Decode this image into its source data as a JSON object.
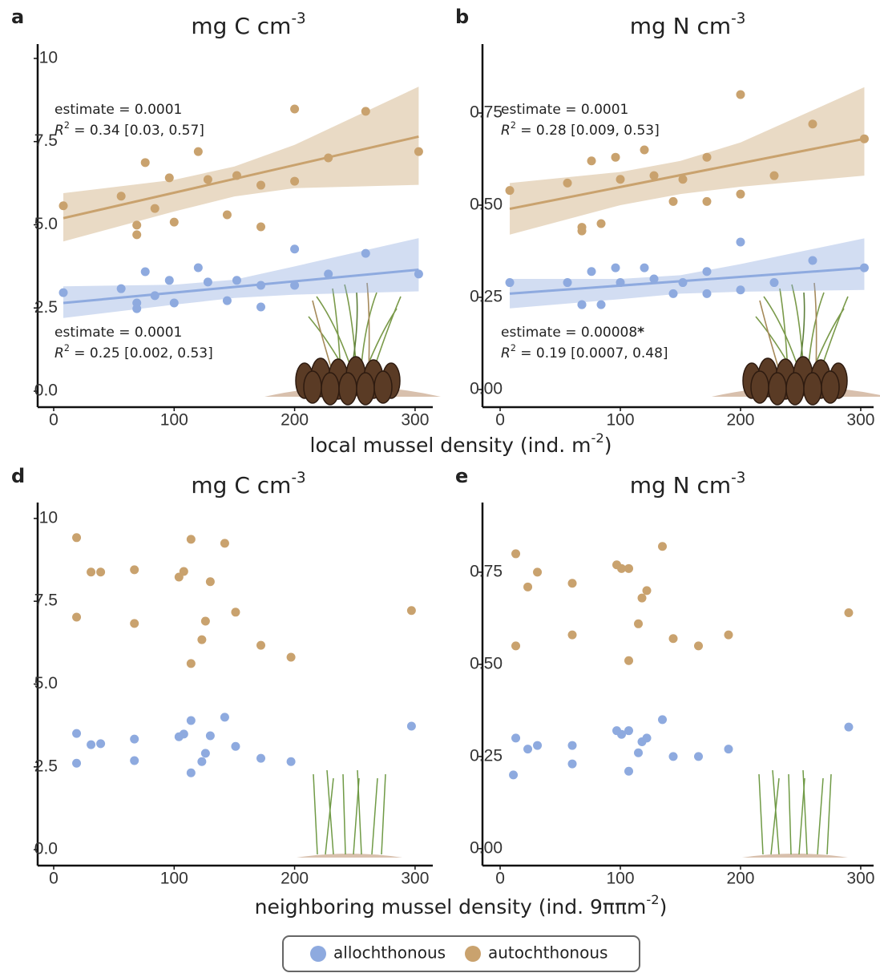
{
  "chart_data": [
    {
      "type": "scatter",
      "panel": "a",
      "title": [
        "mg  C cm",
        "-3"
      ],
      "xlim": [
        -13.3,
        314.7
      ],
      "ylim": [
        -0.48,
        10.43
      ],
      "xticks": [
        0,
        100,
        200,
        300
      ],
      "yticks": [
        {
          "value": 0,
          "label": "0.0"
        },
        2.5,
        {
          "value": 5,
          "label": "5.0"
        },
        7.5,
        10
      ],
      "series": [
        {
          "name": "allochthonous",
          "color": "#8eaadf",
          "x": [
            8,
            56,
            69,
            69,
            76,
            84,
            96,
            100,
            120,
            128,
            144,
            152,
            172,
            172,
            200,
            200,
            228,
            259,
            303
          ],
          "values": [
            2.96,
            3.08,
            2.65,
            2.48,
            3.59,
            2.87,
            3.33,
            2.65,
            3.71,
            3.28,
            2.72,
            3.33,
            3.18,
            2.53,
            4.27,
            3.18,
            3.52,
            4.14,
            3.52
          ],
          "fit": {
            "x": [
              8,
              303
            ],
            "y": [
              2.65,
              3.65
            ]
          },
          "band": {
            "x": [
              8,
              100,
              150,
              200,
              303
            ],
            "lower": [
              2.2,
              2.6,
              2.8,
              2.9,
              3.0
            ],
            "upper": [
              3.15,
              3.2,
              3.35,
              3.75,
              4.6
            ]
          }
        },
        {
          "name": "autochthonous",
          "color": "#c9a26e",
          "x": [
            8,
            56,
            69,
            69,
            76,
            84,
            96,
            100,
            120,
            128,
            144,
            152,
            172,
            172,
            200,
            200,
            228,
            259,
            303
          ],
          "values": [
            5.57,
            5.86,
            4.99,
            4.7,
            6.87,
            5.49,
            6.41,
            5.08,
            7.2,
            6.36,
            5.3,
            6.48,
            6.19,
            4.94,
            8.48,
            6.31,
            7.01,
            8.41,
            7.2
          ],
          "fit": {
            "x": [
              8,
              303
            ],
            "y": [
              5.2,
              7.65
            ]
          },
          "band": {
            "x": [
              8,
              100,
              150,
              200,
              303
            ],
            "lower": [
              4.5,
              5.4,
              5.85,
              6.1,
              6.2
            ],
            "upper": [
              5.95,
              6.35,
              6.75,
              7.4,
              9.15
            ]
          }
        }
      ],
      "annotations": [
        {
          "estimate": [
            "estimate = 0.0001"
          ],
          "r2": [
            "R",
            "2",
            " = 0.34 [0.03, 0.57]"
          ]
        },
        {
          "estimate": [
            "estimate = 0.0001"
          ],
          "r2": [
            "R",
            "2",
            " = 0.25 [0.002, 0.53]"
          ]
        }
      ]
    },
    {
      "type": "scatter",
      "panel": "b",
      "title": [
        "mg  N cm",
        "-3"
      ],
      "xlim": [
        -14.7,
        310.7
      ],
      "ylim": [
        -0.048,
        0.937
      ],
      "xticks": [
        0,
        100,
        200,
        300
      ],
      "yticks": [
        {
          "value": 0,
          "label": "0.00"
        },
        0.25,
        {
          "value": 0.5,
          "label": "0.50"
        },
        0.75
      ],
      "series": [
        {
          "name": "allochthonous",
          "color": "#8eaadf",
          "x": [
            8,
            56,
            68,
            68,
            76,
            84,
            96,
            100,
            120,
            128,
            144,
            152,
            172,
            172,
            200,
            200,
            228,
            260,
            303
          ],
          "values": [
            0.29,
            0.29,
            0.23,
            0.23,
            0.32,
            0.23,
            0.33,
            0.29,
            0.33,
            0.3,
            0.26,
            0.29,
            0.32,
            0.26,
            0.4,
            0.27,
            0.29,
            0.35,
            0.33
          ],
          "fit": {
            "x": [
              8,
              303
            ],
            "y": [
              0.26,
              0.33
            ]
          },
          "band": {
            "x": [
              8,
              100,
              150,
              200,
              303
            ],
            "lower": [
              0.22,
              0.245,
              0.26,
              0.265,
              0.27
            ],
            "upper": [
              0.3,
              0.3,
              0.31,
              0.34,
              0.41
            ]
          }
        },
        {
          "name": "autochthonous",
          "color": "#c9a26e",
          "x": [
            8,
            56,
            68,
            68,
            76,
            84,
            96,
            100,
            120,
            128,
            144,
            152,
            172,
            172,
            200,
            200,
            228,
            260,
            303
          ],
          "values": [
            0.54,
            0.56,
            0.44,
            0.43,
            0.62,
            0.45,
            0.63,
            0.57,
            0.65,
            0.58,
            0.51,
            0.57,
            0.63,
            0.51,
            0.8,
            0.53,
            0.58,
            0.72,
            0.68
          ],
          "fit": {
            "x": [
              8,
              303
            ],
            "y": [
              0.49,
              0.68
            ]
          },
          "band": {
            "x": [
              8,
              100,
              150,
              200,
              303
            ],
            "lower": [
              0.42,
              0.5,
              0.53,
              0.55,
              0.58
            ],
            "upper": [
              0.56,
              0.59,
              0.62,
              0.67,
              0.82
            ]
          }
        }
      ],
      "annotations": [
        {
          "estimate": [
            "estimate = 0.0001"
          ],
          "r2": [
            "R",
            "2",
            " = 0.28 [0.009, 0.53]"
          ]
        },
        {
          "estimate": [
            "estimate = 0.00008",
            "*"
          ],
          "r2": [
            "R",
            "2",
            " = 0.19 [0.0007, 0.48]"
          ]
        }
      ]
    },
    {
      "type": "scatter",
      "panel": "d",
      "title": [
        "mg  C cm",
        "-3"
      ],
      "xlim": [
        -13.3,
        314.7
      ],
      "ylim": [
        -0.48,
        10.48
      ],
      "xticks": [
        0,
        100,
        200,
        300
      ],
      "yticks": [
        {
          "value": 0,
          "label": "0.0"
        },
        2.5,
        {
          "value": 5,
          "label": "5.0"
        },
        7.5,
        10
      ],
      "series": [
        {
          "name": "allochthonous",
          "color": "#8eaadf",
          "x": [
            19,
            19,
            31,
            39,
            67,
            67,
            104,
            108,
            114,
            114,
            123,
            126,
            130,
            142,
            151,
            172,
            197,
            297
          ],
          "values": [
            3.51,
            2.61,
            3.17,
            3.2,
            3.34,
            2.69,
            3.41,
            3.49,
            3.9,
            2.32,
            2.66,
            2.91,
            3.44,
            4.0,
            3.12,
            2.76,
            2.66,
            3.73
          ]
        },
        {
          "name": "autochthonous",
          "color": "#c9a26e",
          "x": [
            19,
            19,
            31,
            39,
            67,
            67,
            104,
            108,
            114,
            114,
            123,
            126,
            130,
            142,
            151,
            172,
            197,
            297
          ],
          "values": [
            9.42,
            7.02,
            8.38,
            8.38,
            8.45,
            6.83,
            8.23,
            8.4,
            9.37,
            5.62,
            6.34,
            6.9,
            8.09,
            9.25,
            7.17,
            6.17,
            5.81,
            7.22
          ]
        }
      ]
    },
    {
      "type": "scatter",
      "panel": "e",
      "title": [
        "mg  N cm",
        "-3"
      ],
      "xlim": [
        -14.7,
        310.7
      ],
      "ylim": [
        -0.046,
        0.939
      ],
      "xticks": [
        0,
        100,
        200,
        300
      ],
      "yticks": [
        {
          "value": 0,
          "label": "0.00"
        },
        0.25,
        {
          "value": 0.5,
          "label": "0.50"
        },
        0.75
      ],
      "series": [
        {
          "name": "allochthonous",
          "color": "#8eaadf",
          "x": [
            13,
            11,
            23,
            31,
            60,
            60,
            97,
            101,
            107,
            107,
            115,
            118,
            122,
            135,
            144,
            165,
            190,
            290
          ],
          "values": [
            0.3,
            0.2,
            0.27,
            0.28,
            0.28,
            0.23,
            0.32,
            0.31,
            0.32,
            0.21,
            0.26,
            0.29,
            0.3,
            0.35,
            0.25,
            0.25,
            0.27,
            0.33
          ]
        },
        {
          "name": "autochthonous",
          "color": "#c9a26e",
          "x": [
            13,
            13,
            23,
            31,
            60,
            60,
            97,
            101,
            107,
            107,
            115,
            118,
            122,
            135,
            144,
            165,
            190,
            290
          ],
          "values": [
            0.8,
            0.55,
            0.71,
            0.75,
            0.72,
            0.58,
            0.77,
            0.76,
            0.76,
            0.51,
            0.61,
            0.68,
            0.7,
            0.82,
            0.57,
            0.55,
            0.58,
            0.64
          ]
        }
      ]
    }
  ],
  "x_labels": [
    [
      "local mussel density (ind. m",
      "-2",
      ")"
    ],
    [
      "neighboring  mussel  density  (ind. 9ππm",
      "-2",
      ")"
    ]
  ]
}
